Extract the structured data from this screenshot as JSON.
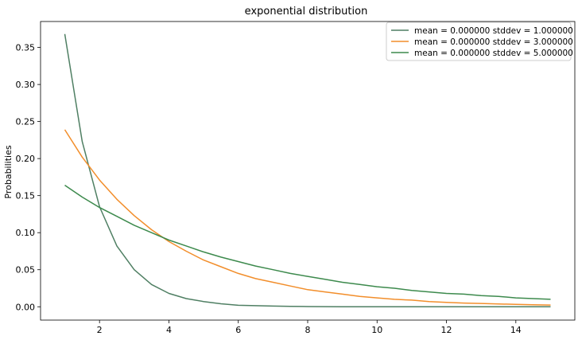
{
  "chart_data": {
    "type": "line",
    "title": "exponential distribution",
    "xlabel": "",
    "ylabel": "Probabilities",
    "xlim": [
      0.3,
      15.7
    ],
    "ylim": [
      -0.018,
      0.385
    ],
    "xticks": [
      2,
      4,
      6,
      8,
      10,
      12,
      14
    ],
    "yticks": [
      0.0,
      0.05,
      0.1,
      0.15,
      0.2,
      0.25,
      0.3,
      0.35
    ],
    "ytick_labels": [
      "0.00",
      "0.05",
      "0.10",
      "0.15",
      "0.20",
      "0.25",
      "0.30",
      "0.35"
    ],
    "grid": false,
    "legend_position": "top-right",
    "x": [
      1,
      1.5,
      2,
      2.5,
      3,
      3.5,
      4,
      4.5,
      5,
      5.5,
      6,
      6.5,
      7,
      7.5,
      8,
      8.5,
      9,
      9.5,
      10,
      10.5,
      11,
      11.5,
      12,
      12.5,
      13,
      13.5,
      14,
      14.5,
      15
    ],
    "series": [
      {
        "name": "mean = 0.000000 stddev = 1.000000",
        "color": "#4f7f63",
        "values": [
          0.368,
          0.223,
          0.135,
          0.082,
          0.05,
          0.03,
          0.018,
          0.011,
          0.007,
          0.004,
          0.002,
          0.0015,
          0.0009,
          0.0006,
          0.0003,
          0.0002,
          0.0001,
          0.0001,
          0.0,
          0.0,
          0.0,
          0.0,
          0.0,
          0.0,
          0.0,
          0.0,
          0.0,
          0.0,
          0.0
        ]
      },
      {
        "name": "mean = 0.000000 stddev = 3.000000",
        "color": "#f28e2b",
        "values": [
          0.239,
          0.202,
          0.171,
          0.145,
          0.123,
          0.104,
          0.088,
          0.075,
          0.063,
          0.054,
          0.045,
          0.038,
          0.033,
          0.028,
          0.023,
          0.02,
          0.017,
          0.014,
          0.012,
          0.01,
          0.009,
          0.007,
          0.006,
          0.005,
          0.0045,
          0.0038,
          0.0032,
          0.0027,
          0.0023
        ]
      },
      {
        "name": "mean = 0.000000 stddev = 5.000000",
        "color": "#3d8a4d",
        "values": [
          0.164,
          0.148,
          0.134,
          0.122,
          0.11,
          0.1,
          0.09,
          0.082,
          0.074,
          0.067,
          0.061,
          0.055,
          0.05,
          0.045,
          0.041,
          0.037,
          0.033,
          0.03,
          0.027,
          0.025,
          0.022,
          0.02,
          0.018,
          0.017,
          0.015,
          0.014,
          0.012,
          0.011,
          0.01
        ]
      }
    ]
  }
}
